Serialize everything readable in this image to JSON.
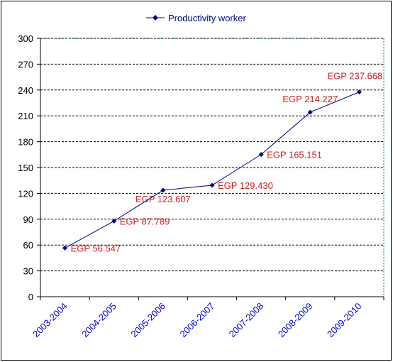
{
  "chart_data": {
    "type": "line",
    "title": "",
    "xlabel": "",
    "ylabel": "",
    "categories": [
      "2003-2004",
      "2004-2005",
      "2005-2006",
      "2006-2007",
      "2007-2008",
      "2008-2009",
      "2009-2010"
    ],
    "series": [
      {
        "name": "Productivity worker",
        "values": [
          56.547,
          87.789,
          123.607,
          129.43,
          165.151,
          214.227,
          237.668
        ],
        "data_labels": [
          "EGP 56.547",
          "EGP 87.789",
          "EGP 123.607",
          "EGP 129.430",
          "EGP 165.151",
          "EGP 214.227",
          "EGP 237.668"
        ]
      }
    ],
    "ylim": [
      0,
      300
    ],
    "yticks": [
      "0",
      "30",
      "60",
      "90",
      "120",
      "150",
      "180",
      "210",
      "240",
      "270",
      "300"
    ],
    "grid": true,
    "legend_position": "top"
  },
  "colors": {
    "line": "#000080",
    "marker": "#000080",
    "data_label": "#cc2222",
    "category_label": "#0000cc",
    "grid": "#000000",
    "plot_border": "#008080"
  }
}
